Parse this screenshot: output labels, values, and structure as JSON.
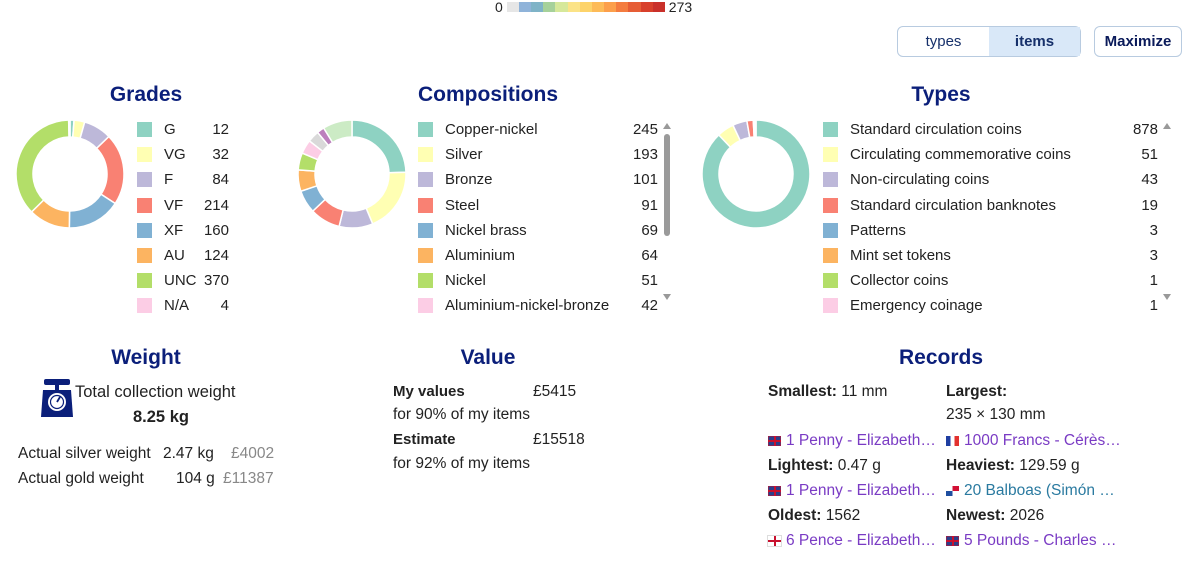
{
  "scale": {
    "min_label": "0",
    "max_label": "273",
    "colors": [
      "#e6e6e6",
      "#8fb3d9",
      "#7fb3c7",
      "#a6d19a",
      "#d6e89a",
      "#fbe387",
      "#fdd36a",
      "#fdbb58",
      "#fc9f4b",
      "#f47c3f",
      "#e65d35",
      "#d8402b",
      "#c9302a"
    ]
  },
  "toggle": {
    "types_label": "types",
    "items_label": "items",
    "active": "items"
  },
  "maximize_label": "Maximize",
  "chart_data": [
    {
      "type": "pie",
      "title": "Grades",
      "donut": true,
      "categories": [
        "G",
        "VG",
        "F",
        "VF",
        "XF",
        "AU",
        "UNC",
        "N/A"
      ],
      "values": [
        12,
        32,
        84,
        214,
        160,
        124,
        370,
        4
      ],
      "colors": [
        "#8ed2c2",
        "#ffffb3",
        "#bdb8d9",
        "#f98173",
        "#80b1d3",
        "#fcb461",
        "#b3de69",
        "#fccde5"
      ]
    },
    {
      "type": "pie",
      "title": "Compositions",
      "donut": true,
      "categories": [
        "Copper-nickel",
        "Silver",
        "Bronze",
        "Steel",
        "Nickel brass",
        "Aluminium",
        "Nickel",
        "Aluminium-nickel-bronze"
      ],
      "values": [
        245,
        193,
        101,
        91,
        69,
        64,
        51,
        42
      ],
      "colors": [
        "#8ed2c2",
        "#ffffb3",
        "#bdb8d9",
        "#f98173",
        "#80b1d3",
        "#fcb461",
        "#b3de69",
        "#fccde5"
      ],
      "extra_slices": [
        {
          "value": 35,
          "color": "#d9d9d9"
        },
        {
          "value": 22,
          "color": "#bc80bd"
        },
        {
          "value": 88,
          "color": "#ccebc5"
        }
      ]
    },
    {
      "type": "pie",
      "title": "Types",
      "donut": true,
      "categories": [
        "Standard circulation coins",
        "Circulating commemorative coins",
        "Non-circulating coins",
        "Standard circulation banknotes",
        "Patterns",
        "Mint set tokens",
        "Collector coins",
        "Emergency coinage"
      ],
      "values": [
        878,
        51,
        43,
        19,
        3,
        3,
        1,
        1
      ],
      "colors": [
        "#8ed2c2",
        "#ffffb3",
        "#bdb8d9",
        "#f98173",
        "#80b1d3",
        "#fcb461",
        "#b3de69",
        "#fccde5"
      ]
    }
  ],
  "weight": {
    "title": "Weight",
    "total_label": "Total collection weight",
    "total_value": "8.25 kg",
    "silver_label": "Actual silver weight",
    "silver_value": "2.47 kg",
    "silver_price": "£4002",
    "gold_label": "Actual gold weight",
    "gold_value": "104 g",
    "gold_price": "£11387",
    "icon": "scale-icon"
  },
  "value": {
    "title": "Value",
    "my_values_label": "My values",
    "my_values_amount": "£5415",
    "my_values_note": "for 90% of my items",
    "estimate_label": "Estimate",
    "estimate_amount": "£15518",
    "estimate_note": "for 92% of my items"
  },
  "records": {
    "title": "Records",
    "smallest_label": "Smallest:",
    "smallest_value": "11 mm",
    "smallest_link": "1 Penny - Elizabeth…",
    "largest_label": "Largest:",
    "largest_value": "235 × 130 mm",
    "largest_link": "1000 Francs - Cérès…",
    "lightest_label": "Lightest:",
    "lightest_value": "0.47 g",
    "lightest_link": "1 Penny - Elizabeth…",
    "heaviest_label": "Heaviest:",
    "heaviest_value": "129.59 g",
    "heaviest_link": "20 Balboas (Simón …",
    "oldest_label": "Oldest:",
    "oldest_value": "1562",
    "oldest_link": "6 Pence - Elizabeth…",
    "newest_label": "Newest:",
    "newest_value": "2026",
    "newest_link": "5 Pounds - Charles …"
  }
}
